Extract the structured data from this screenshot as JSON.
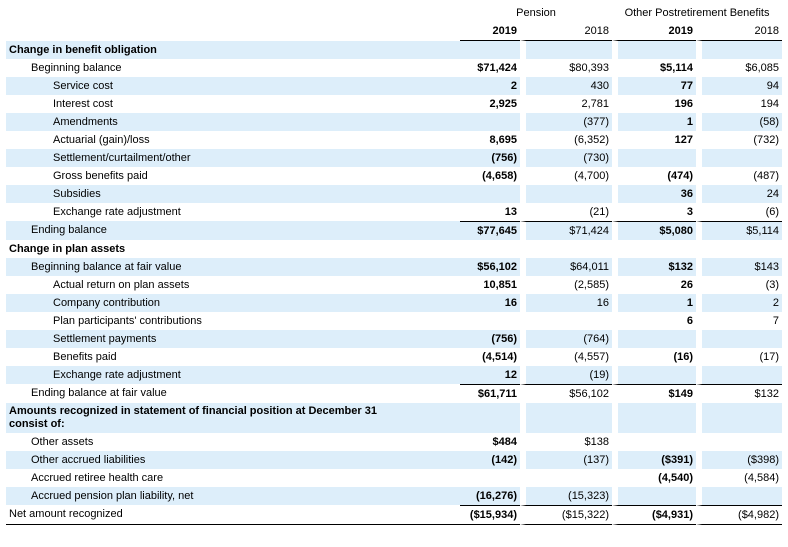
{
  "header": {
    "groups": [
      "Pension",
      "Other Postretirement Benefits"
    ],
    "years": [
      "2019",
      "2018",
      "2019",
      "2018"
    ]
  },
  "table": {
    "rows": [
      [
        "Change in benefit obligation",
        null,
        null,
        null,
        null
      ],
      [
        "Beginning balance",
        "$71,424",
        "$80,393",
        "$5,114",
        "$6,085"
      ],
      [
        "Service cost",
        "2",
        "430",
        "77",
        "94"
      ],
      [
        "Interest cost",
        "2,925",
        "2,781",
        "196",
        "194"
      ],
      [
        "Amendments",
        null,
        "(377)",
        "1",
        "(58)"
      ],
      [
        "Actuarial (gain)/loss",
        "8,695",
        "(6,352)",
        "127",
        "(732)"
      ],
      [
        "Settlement/curtailment/other",
        "(756)",
        "(730)",
        null,
        null
      ],
      [
        "Gross benefits paid",
        "(4,658)",
        "(4,700)",
        "(474)",
        "(487)"
      ],
      [
        "Subsidies",
        null,
        null,
        "36",
        "24"
      ],
      [
        "Exchange rate adjustment",
        "13",
        "(21)",
        "3",
        "(6)"
      ],
      [
        "Ending balance",
        "$77,645",
        "$71,424",
        "$5,080",
        "$5,114"
      ],
      [
        "Change in plan assets",
        null,
        null,
        null,
        null
      ],
      [
        "Beginning balance at fair value",
        "$56,102",
        "$64,011",
        "$132",
        "$143"
      ],
      [
        "Actual return on plan assets",
        "10,851",
        "(2,585)",
        "26",
        "(3)"
      ],
      [
        "Company contribution",
        "16",
        "16",
        "1",
        "2"
      ],
      [
        "Plan participants' contributions",
        null,
        null,
        "6",
        "7"
      ],
      [
        "Settlement payments",
        "(756)",
        "(764)",
        null,
        null
      ],
      [
        "Benefits paid",
        "(4,514)",
        "(4,557)",
        "(16)",
        "(17)"
      ],
      [
        "Exchange rate adjustment",
        "12",
        "(19)",
        null,
        null
      ],
      [
        "Ending balance at fair value",
        "$61,711",
        "$56,102",
        "$149",
        "$132"
      ],
      [
        "Amounts recognized in statement of financial position at December 31 consist of:",
        null,
        null,
        null,
        null
      ],
      [
        "Other assets",
        "$484",
        "$138",
        null,
        null
      ],
      [
        "Other accrued liabilities",
        "(142)",
        "(137)",
        "($391)",
        "($398)"
      ],
      [
        "Accrued retiree health care",
        null,
        null,
        "(4,540)",
        "(4,584)"
      ],
      [
        "Accrued pension plan liability, net",
        "(16,276)",
        "(15,323)",
        null,
        null
      ],
      [
        "Net amount recognized",
        "($15,934)",
        "($15,322)",
        "($4,931)",
        "($4,982)"
      ]
    ]
  }
}
